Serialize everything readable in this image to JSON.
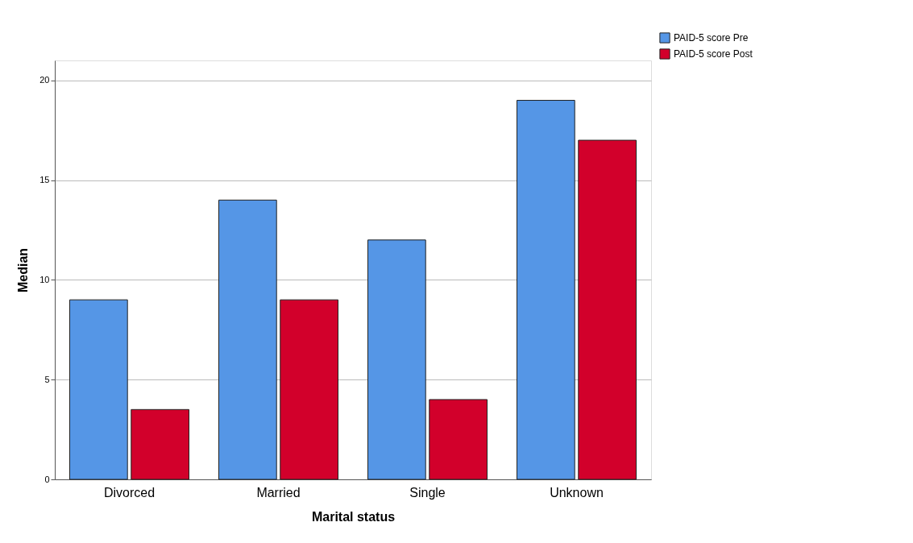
{
  "chart_data": {
    "type": "bar",
    "xlabel": "Marital status",
    "ylabel": "Median",
    "categories": [
      "Divorced",
      "Married",
      "Single",
      "Unknown"
    ],
    "series": [
      {
        "name": "PAID-5 score Pre",
        "color": "#5596e6",
        "values": [
          9,
          14,
          12,
          19
        ]
      },
      {
        "name": "PAID-5 score Post",
        "color": "#d2002b",
        "values": [
          3.5,
          9,
          4,
          17
        ]
      }
    ],
    "ylim": [
      0,
      21
    ],
    "yticks": [
      0,
      5,
      10,
      15,
      20
    ],
    "grid": "y",
    "legend": "top right"
  }
}
